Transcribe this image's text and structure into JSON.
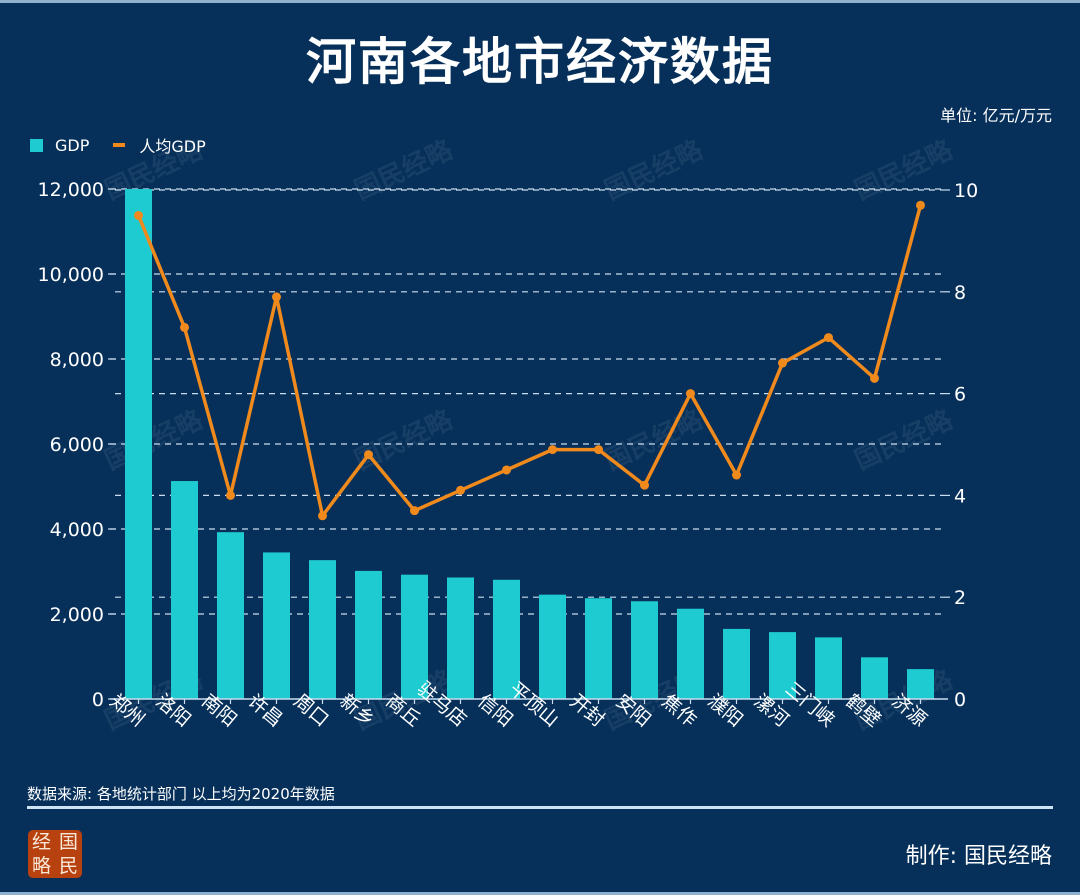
{
  "header": {
    "title": "河南各地市经济数据",
    "unit": "单位: 亿元/万元"
  },
  "legend": {
    "items": [
      {
        "label": "GDP",
        "color": "#1ecbd0",
        "kind": "bar"
      },
      {
        "label": "人均GDP",
        "color": "#f08a1c",
        "kind": "line"
      }
    ]
  },
  "footer": {
    "source": "数据来源: 各地统计部门  以上均为2020年数据",
    "maker": "制作: 国民经略",
    "logo_chars": [
      "经",
      "国",
      "略",
      "民"
    ]
  },
  "watermark": "国民经略",
  "chart_data": {
    "type": "bar",
    "title": "河南各地市经济数据",
    "xlabel": "",
    "ylabel": "",
    "categories": [
      "郑州",
      "洛阳",
      "南阳",
      "许昌",
      "周口",
      "新乡",
      "商丘",
      "驻马店",
      "信阳",
      "平顶山",
      "开封",
      "安阳",
      "焦作",
      "濮阳",
      "漯河",
      "三门峡",
      "鹤壁",
      "济源"
    ],
    "series": [
      {
        "name": "GDP",
        "type": "bar",
        "axis": "left",
        "color": "#1ecbd0",
        "values": [
          12003,
          5128,
          3925,
          3449,
          3267,
          3014,
          2925,
          2859,
          2805,
          2455,
          2371,
          2300,
          2124,
          1649,
          1574,
          1450,
          981,
          703
        ]
      },
      {
        "name": "人均GDP",
        "type": "line",
        "axis": "right",
        "color": "#f08a1c",
        "values": [
          9.5,
          7.3,
          4.0,
          7.9,
          3.6,
          4.8,
          3.7,
          4.1,
          4.5,
          4.9,
          4.9,
          4.2,
          6.0,
          4.4,
          6.6,
          7.1,
          6.3,
          9.7
        ]
      }
    ],
    "y_left": {
      "ylim": [
        0,
        12000
      ],
      "ticks": [
        0,
        2000,
        4000,
        6000,
        8000,
        10000,
        12000
      ],
      "tick_labels": [
        "0",
        "2,000",
        "4,000",
        "6,000",
        "8,000",
        "10,000",
        "12,000"
      ]
    },
    "y_right": {
      "ylim": [
        0,
        10
      ],
      "ticks": [
        0,
        2,
        4,
        6,
        8,
        10
      ],
      "tick_labels": [
        "0",
        "2",
        "4",
        "6",
        "8",
        "10"
      ]
    },
    "grid": true,
    "legend_position": "top-left"
  }
}
